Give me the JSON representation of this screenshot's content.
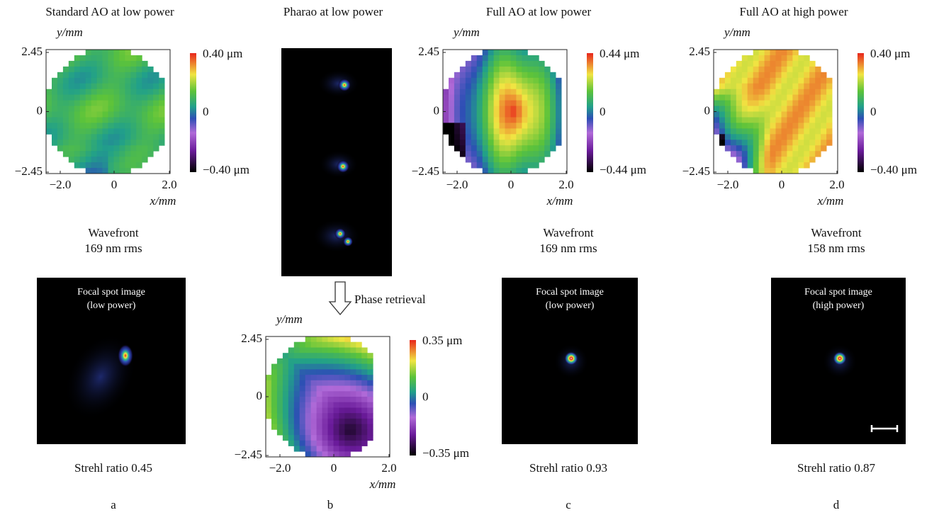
{
  "panels": [
    {
      "title": "Standard AO at low power",
      "map": {
        "y_label": "y/mm",
        "x_label": "x/mm",
        "y_ticks": [
          "2.45",
          "0",
          "−2.45"
        ],
        "x_ticks": [
          "−2.0",
          "0",
          "2.0"
        ],
        "colorbar_ticks": [
          "0.40 μm",
          "0",
          "−0.40 μm"
        ]
      },
      "wavefront_caption": [
        "Wavefront",
        "169 nm rms"
      ],
      "focal_spot_caption": [
        "Focal spot image",
        "(low power)"
      ],
      "strehl": "Strehl ratio  0.45",
      "label": "a"
    },
    {
      "title": "Pharao at low power",
      "arrow_label": "Phase retrieval",
      "map": {
        "y_label": "y/mm",
        "x_label": "x/mm",
        "y_ticks": [
          "2.45",
          "0",
          "−2.45"
        ],
        "x_ticks": [
          "−2.0",
          "0",
          "2.0"
        ],
        "colorbar_ticks": [
          "0.35 μm",
          "0",
          "−0.35 μm"
        ]
      },
      "label": "b"
    },
    {
      "title": "Full AO at low power",
      "map": {
        "y_label": "y/mm",
        "x_label": "x/mm",
        "y_ticks": [
          "2.45",
          "0",
          "−2.45"
        ],
        "x_ticks": [
          "−2.0",
          "0",
          "2.0"
        ],
        "colorbar_ticks": [
          "0.44 μm",
          "0",
          "−0.44 μm"
        ]
      },
      "wavefront_caption": [
        "Wavefront",
        "169 nm rms"
      ],
      "focal_spot_caption": [
        "Focal spot image",
        "(low power)"
      ],
      "strehl": "Strehl ratio 0.93",
      "label": "c"
    },
    {
      "title": "Full AO at high power",
      "map": {
        "y_label": "y/mm",
        "x_label": "x/mm",
        "y_ticks": [
          "2.45",
          "0",
          "−2.45"
        ],
        "x_ticks": [
          "−2.0",
          "0",
          "2.0"
        ],
        "colorbar_ticks": [
          "0.40 μm",
          "0",
          "−0.40 μm"
        ]
      },
      "wavefront_caption": [
        "Wavefront",
        "158 nm rms"
      ],
      "focal_spot_caption": [
        "Focal spot image",
        "(high power)"
      ],
      "strehl": "Strehl ratio  0.87",
      "label": "d"
    }
  ]
}
